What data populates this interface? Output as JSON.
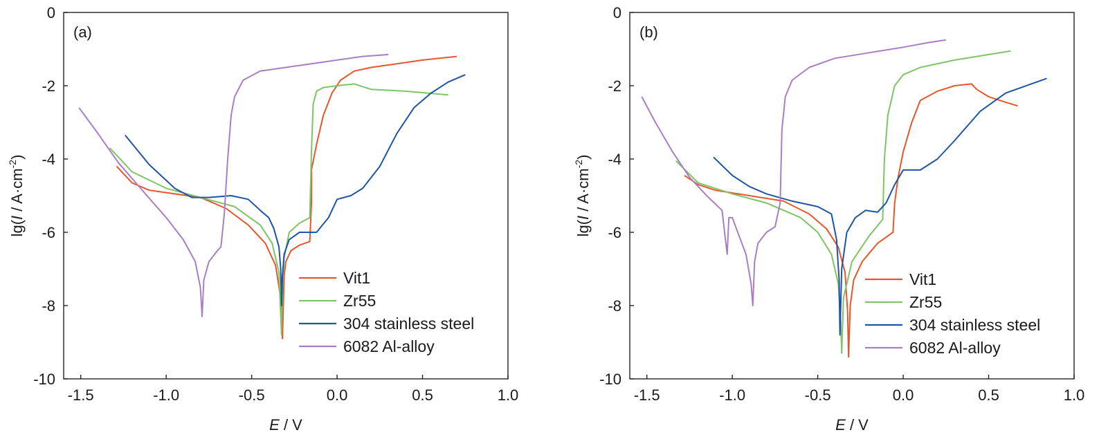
{
  "chart_data": [
    {
      "type": "line",
      "panel_label": "(a)",
      "xlabel": {
        "var": "E",
        "unit": " / V"
      },
      "ylabel": {
        "prefix": "lg(",
        "var": "I",
        "unit": " / A·cm",
        "sup": "-2",
        "suffix": ")"
      },
      "xlim": [
        -1.6,
        1.0
      ],
      "ylim": [
        -10,
        0
      ],
      "xticks": [
        "-1.5",
        "-1.0",
        "-0.5",
        "0.0",
        "0.5",
        "1.0"
      ],
      "yticks": [
        "0",
        "-2",
        "-4",
        "-6",
        "-8",
        "-10"
      ],
      "legend_position": "bottom-right",
      "grid": false,
      "series": [
        {
          "name": "Vit1",
          "color": "#e8552a",
          "x": [
            -1.29,
            -1.2,
            -1.1,
            -0.95,
            -0.8,
            -0.65,
            -0.52,
            -0.42,
            -0.36,
            -0.33,
            -0.32,
            -0.31,
            -0.3,
            -0.27,
            -0.22,
            -0.16,
            -0.15,
            -0.15,
            -0.12,
            -0.08,
            -0.03,
            0.02,
            0.1,
            0.2,
            0.35,
            0.5,
            0.7
          ],
          "y": [
            -4.2,
            -4.65,
            -4.85,
            -4.95,
            -5.05,
            -5.35,
            -5.8,
            -6.3,
            -6.9,
            -7.8,
            -8.9,
            -7.2,
            -6.8,
            -6.5,
            -6.35,
            -6.25,
            -5.2,
            -4.3,
            -3.6,
            -2.8,
            -2.2,
            -1.85,
            -1.6,
            -1.5,
            -1.4,
            -1.3,
            -1.2
          ]
        },
        {
          "name": "Zr55",
          "color": "#7cc466",
          "x": [
            -1.33,
            -1.2,
            -1.0,
            -0.8,
            -0.6,
            -0.45,
            -0.38,
            -0.34,
            -0.325,
            -0.32,
            -0.31,
            -0.28,
            -0.22,
            -0.16,
            -0.15,
            -0.14,
            -0.12,
            -0.08,
            0.0,
            0.1,
            0.2,
            0.4,
            0.65
          ],
          "y": [
            -3.7,
            -4.35,
            -4.8,
            -5.05,
            -5.3,
            -5.8,
            -6.3,
            -7.1,
            -8.8,
            -7.5,
            -6.7,
            -6.0,
            -5.75,
            -5.6,
            -3.8,
            -2.5,
            -2.15,
            -2.05,
            -2.0,
            -1.95,
            -2.1,
            -2.15,
            -2.25
          ]
        },
        {
          "name": "304 stainless steel",
          "color": "#1d54a4",
          "x": [
            -1.24,
            -1.1,
            -0.95,
            -0.85,
            -0.75,
            -0.62,
            -0.52,
            -0.45,
            -0.4,
            -0.37,
            -0.34,
            -0.33,
            -0.325,
            -0.32,
            -0.31,
            -0.28,
            -0.22,
            -0.12,
            -0.05,
            0.0,
            0.08,
            0.15,
            0.25,
            0.35,
            0.45,
            0.55,
            0.65,
            0.75
          ],
          "y": [
            -3.35,
            -4.15,
            -4.8,
            -5.05,
            -5.05,
            -5.0,
            -5.1,
            -5.4,
            -5.6,
            -5.9,
            -6.4,
            -7.0,
            -8.0,
            -7.2,
            -6.6,
            -6.2,
            -6.0,
            -6.0,
            -5.6,
            -5.1,
            -5.0,
            -4.8,
            -4.2,
            -3.3,
            -2.6,
            -2.2,
            -1.9,
            -1.7
          ]
        },
        {
          "name": "6082 Al-alloy",
          "color": "#a77ec6",
          "x": [
            -1.51,
            -1.4,
            -1.28,
            -1.15,
            -1.0,
            -0.9,
            -0.83,
            -0.8,
            -0.79,
            -0.78,
            -0.75,
            -0.7,
            -0.68,
            -0.66,
            -0.64,
            -0.62,
            -0.6,
            -0.55,
            -0.45,
            -0.3,
            -0.15,
            0.0,
            0.15,
            0.3
          ],
          "y": [
            -2.6,
            -3.3,
            -4.1,
            -4.8,
            -5.6,
            -6.2,
            -6.8,
            -7.5,
            -8.3,
            -7.3,
            -6.8,
            -6.5,
            -6.4,
            -5.5,
            -4.0,
            -2.8,
            -2.3,
            -1.85,
            -1.6,
            -1.5,
            -1.4,
            -1.3,
            -1.2,
            -1.15
          ]
        }
      ]
    },
    {
      "type": "line",
      "panel_label": "(b)",
      "xlabel": {
        "var": "E",
        "unit": " / V"
      },
      "ylabel": {
        "prefix": "lg(",
        "var": "I",
        "unit": " / A·cm",
        "sup": "-2",
        "suffix": ")"
      },
      "xlim": [
        -1.6,
        1.0
      ],
      "ylim": [
        -10,
        0
      ],
      "xticks": [
        "-1.5",
        "-1.0",
        "-0.5",
        "0.0",
        "0.5",
        "1.0"
      ],
      "yticks": [
        "0",
        "-2",
        "-4",
        "-6",
        "-8",
        "-10"
      ],
      "legend_position": "bottom-right",
      "grid": false,
      "series": [
        {
          "name": "Vit1",
          "color": "#e8552a",
          "x": [
            -1.28,
            -1.2,
            -1.1,
            -0.9,
            -0.7,
            -0.55,
            -0.45,
            -0.38,
            -0.34,
            -0.325,
            -0.32,
            -0.31,
            -0.29,
            -0.24,
            -0.15,
            -0.06,
            -0.05,
            -0.03,
            0.0,
            0.05,
            0.1,
            0.2,
            0.3,
            0.4,
            0.43,
            0.5,
            0.6,
            0.67
          ],
          "y": [
            -4.45,
            -4.7,
            -4.85,
            -5.0,
            -5.15,
            -5.5,
            -5.9,
            -6.4,
            -7.1,
            -8.2,
            -9.4,
            -8.0,
            -7.3,
            -6.8,
            -6.3,
            -6.0,
            -5.2,
            -4.5,
            -3.8,
            -3.0,
            -2.4,
            -2.15,
            -2.0,
            -1.95,
            -2.1,
            -2.3,
            -2.45,
            -2.55
          ]
        },
        {
          "name": "Zr55",
          "color": "#7cc466",
          "x": [
            -1.33,
            -1.2,
            -1.0,
            -0.8,
            -0.6,
            -0.5,
            -0.42,
            -0.38,
            -0.365,
            -0.36,
            -0.35,
            -0.3,
            -0.2,
            -0.12,
            -0.11,
            -0.09,
            -0.05,
            0.0,
            0.1,
            0.3,
            0.5,
            0.63
          ],
          "y": [
            -4.05,
            -4.65,
            -4.95,
            -5.2,
            -5.6,
            -6.0,
            -6.6,
            -7.4,
            -8.5,
            -9.3,
            -7.8,
            -6.8,
            -6.1,
            -5.65,
            -4.0,
            -2.8,
            -2.0,
            -1.7,
            -1.5,
            -1.3,
            -1.15,
            -1.05
          ]
        },
        {
          "name": "304 stainless steel",
          "color": "#1d54a4",
          "x": [
            -1.11,
            -1.0,
            -0.9,
            -0.8,
            -0.65,
            -0.5,
            -0.42,
            -0.39,
            -0.375,
            -0.37,
            -0.36,
            -0.33,
            -0.28,
            -0.22,
            -0.15,
            -0.1,
            -0.05,
            0.0,
            0.1,
            0.2,
            0.3,
            0.45,
            0.6,
            0.84
          ],
          "y": [
            -3.95,
            -4.45,
            -4.75,
            -4.95,
            -5.15,
            -5.3,
            -5.5,
            -6.2,
            -7.3,
            -8.8,
            -7.0,
            -6.0,
            -5.6,
            -5.4,
            -5.45,
            -5.2,
            -4.7,
            -4.3,
            -4.3,
            -4.0,
            -3.5,
            -2.7,
            -2.2,
            -1.8
          ]
        },
        {
          "name": "6082 Al-alloy",
          "color": "#a77ec6",
          "x": [
            -1.53,
            -1.45,
            -1.35,
            -1.25,
            -1.15,
            -1.06,
            -1.03,
            -1.02,
            -1.0,
            -0.96,
            -0.92,
            -0.89,
            -0.88,
            -0.87,
            -0.85,
            -0.8,
            -0.75,
            -0.72,
            -0.71,
            -0.69,
            -0.65,
            -0.55,
            -0.4,
            -0.2,
            0.0,
            0.15,
            0.25
          ],
          "y": [
            -2.3,
            -3.0,
            -3.8,
            -4.5,
            -5.0,
            -5.4,
            -6.6,
            -5.6,
            -5.6,
            -6.1,
            -6.6,
            -7.4,
            -8.0,
            -6.8,
            -6.3,
            -6.0,
            -5.85,
            -5.2,
            -3.2,
            -2.3,
            -1.85,
            -1.5,
            -1.25,
            -1.1,
            -0.95,
            -0.82,
            -0.75
          ]
        }
      ]
    }
  ]
}
